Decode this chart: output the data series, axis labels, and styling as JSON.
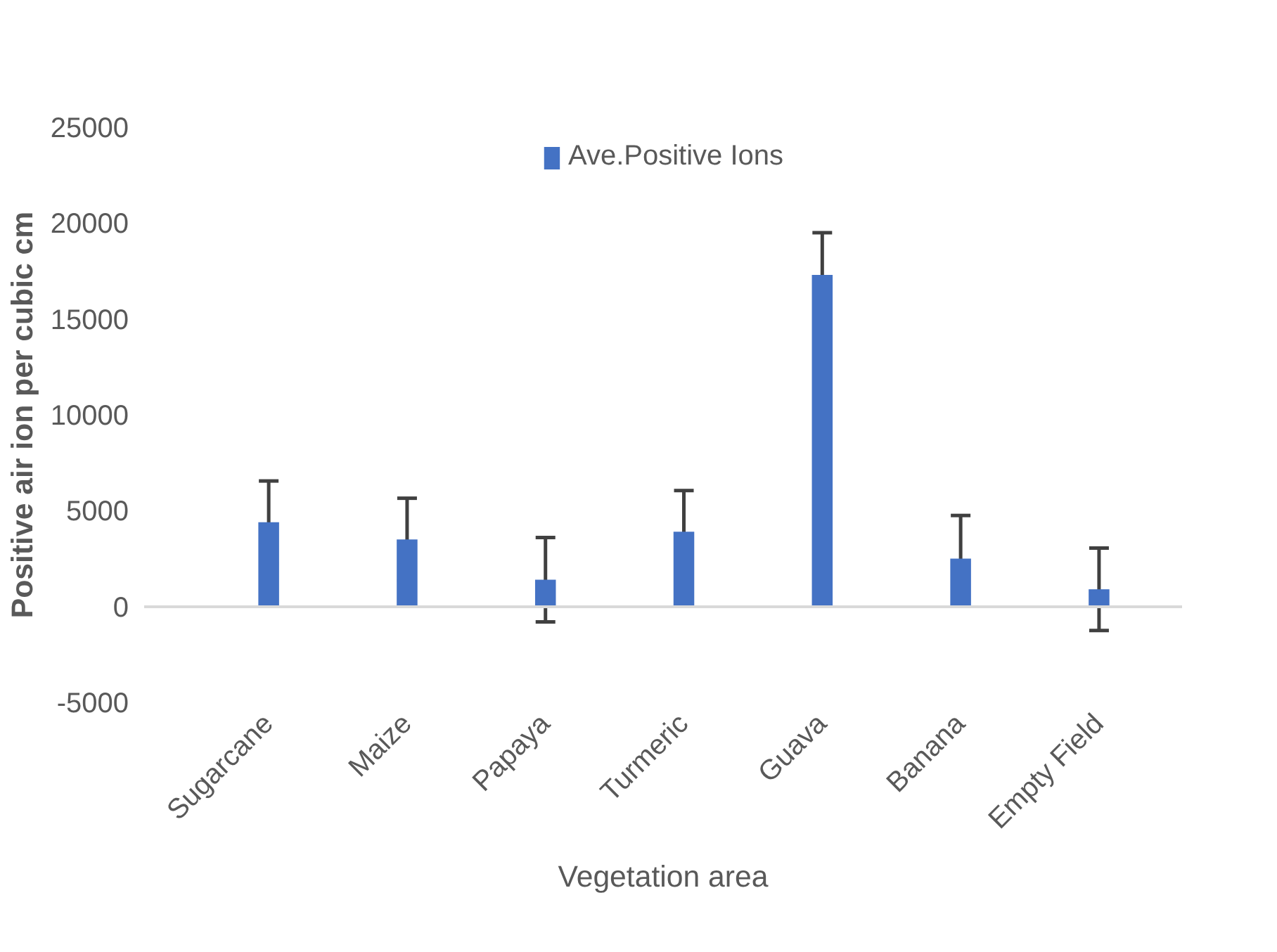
{
  "chart_data": {
    "type": "bar",
    "xlabel": "Vegetation area",
    "ylabel": "Positive air ion per cubic cm",
    "categories": [
      "Sugarcane",
      "Maize",
      "Papaya",
      "Turmeric",
      "Guava",
      "Banana",
      "Empty Field"
    ],
    "series": [
      {
        "name": "Ave.Positive Ions",
        "color": "#4472c4",
        "values": [
          4400,
          3500,
          1400,
          3900,
          17300,
          2500,
          900
        ],
        "errors": [
          2150,
          2150,
          2200,
          2150,
          2200,
          2250,
          2150
        ]
      }
    ],
    "ylim": [
      -5000,
      25000
    ],
    "yticks": [
      -5000,
      0,
      5000,
      10000,
      15000,
      20000,
      25000
    ],
    "legend": "top"
  }
}
